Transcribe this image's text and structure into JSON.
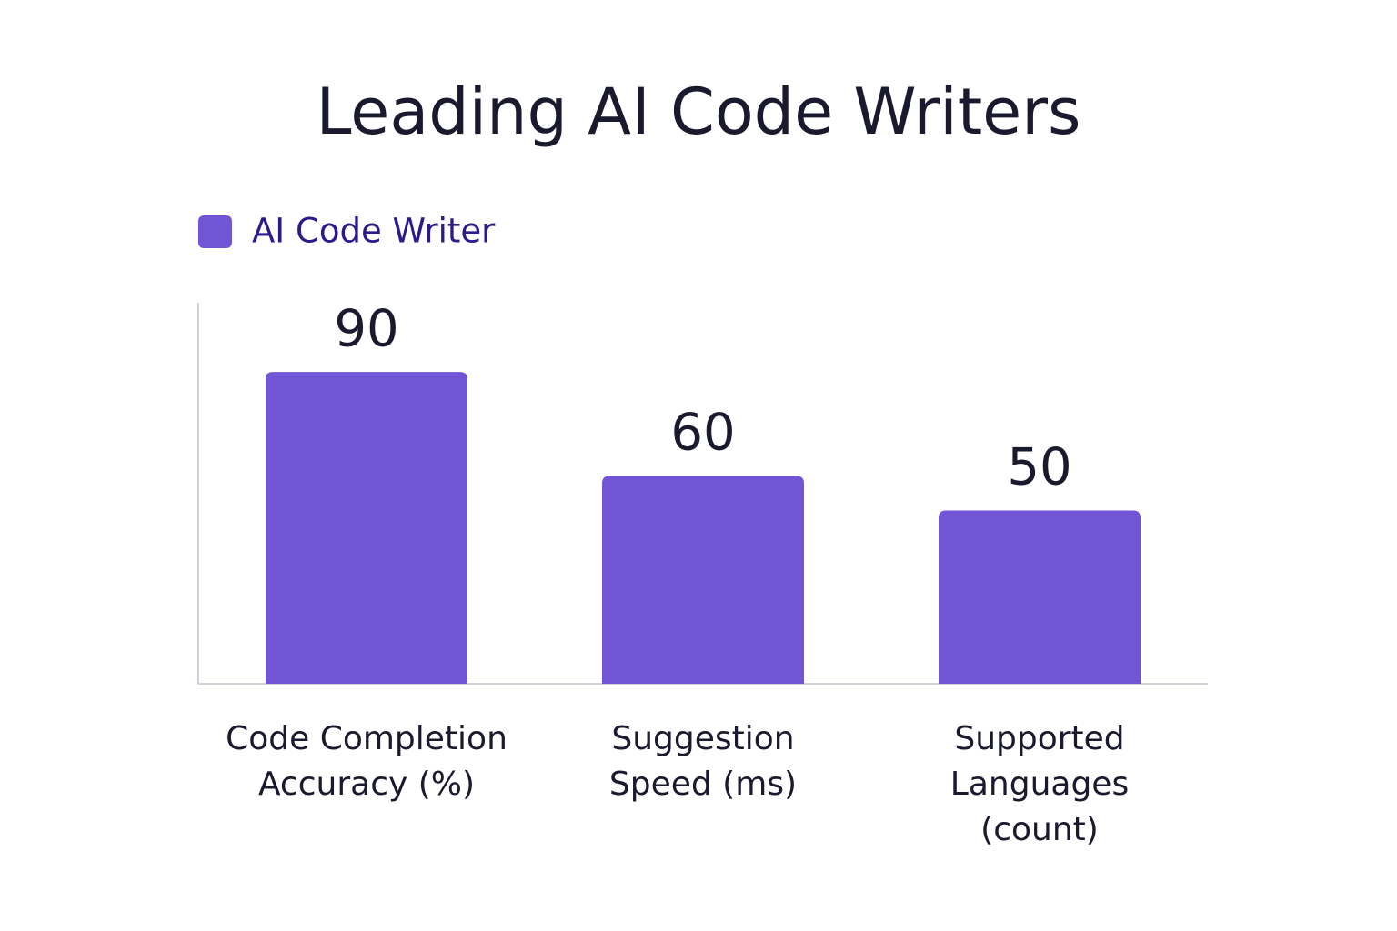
{
  "chart_data": {
    "type": "bar",
    "title": "Leading AI Code Writers",
    "series": [
      {
        "name": "AI Code Writer",
        "color": "#7255d4",
        "values": [
          90,
          60,
          50
        ]
      }
    ],
    "categories": [
      "Code Completion\nAccuracy (%)",
      "Suggestion\nSpeed (ms)",
      "Supported\nLanguages\n(count)"
    ],
    "ylim": [
      0,
      110
    ]
  }
}
